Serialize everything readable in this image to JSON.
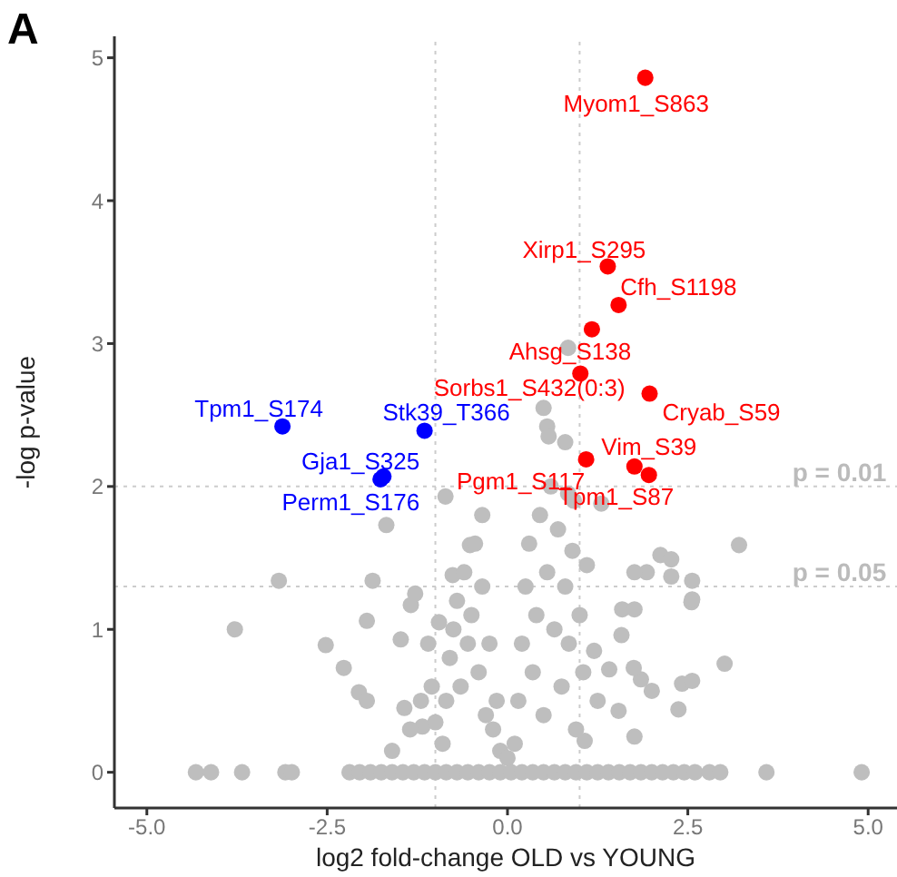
{
  "chart_data": {
    "type": "scatter",
    "title": "A",
    "xlabel": "log2 fold-change OLD vs YOUNG",
    "ylabel": "-log p-value",
    "xlim": [
      -5.45,
      5.4
    ],
    "ylim": [
      -0.25,
      5.15
    ],
    "xticks": [
      {
        "value": -5,
        "label": "-5.0"
      },
      {
        "value": -2.5,
        "label": "-2.5"
      },
      {
        "value": 0,
        "label": "0.0"
      },
      {
        "value": 2.5,
        "label": "2.5"
      },
      {
        "value": 5,
        "label": "5.0"
      }
    ],
    "yticks": [
      0,
      1,
      2,
      3,
      4,
      5
    ],
    "grid": false,
    "marker": "circle",
    "series": [
      {
        "color": "#bebebe",
        "x": [
          -4.32,
          -4.11,
          -3.68,
          -3.08,
          -2.99,
          -2.19,
          -2.05,
          -1.9,
          -1.75,
          -1.6,
          -1.45,
          -1.3,
          -1.15,
          -1.0,
          -0.85,
          -0.7,
          -0.55,
          -0.4,
          -0.25,
          -0.1,
          0.05,
          0.2,
          0.35,
          0.5,
          0.65,
          0.8,
          0.95,
          1.1,
          1.25,
          1.4,
          1.55,
          1.7,
          1.85,
          2.0,
          2.15,
          2.3,
          2.45,
          2.6,
          2.8,
          2.95,
          3.59,
          4.91,
          -3.78,
          -2.52,
          -2.27,
          -2.06,
          -1.95,
          -1.95,
          -1.43,
          -1.48,
          3.01,
          2.42,
          2.56,
          2.37,
          2.55,
          1.76,
          2.0,
          1.85,
          1.54,
          1.75,
          1.58,
          1.41,
          1.59,
          1.76,
          1.07,
          -1.18,
          -1.34,
          -1.68,
          -0.52,
          -0.35,
          -0.86,
          3.21,
          2.12,
          2.27,
          1.93,
          1.76,
          2.27,
          2.56,
          2.56,
          -3.17,
          -1.87,
          -1.28,
          -0.76,
          0.84,
          0.5,
          0.55,
          0.57,
          0.8,
          0.84,
          0.92,
          1.3,
          -0.9,
          -0.85,
          -0.8,
          -0.75,
          -0.7,
          -0.65,
          -0.6,
          -0.55,
          -0.5,
          -0.45,
          -0.4,
          -0.35,
          -0.3,
          -0.25,
          -0.2,
          -0.15,
          -0.1,
          0.0,
          0.1,
          0.15,
          0.2,
          0.25,
          0.3,
          0.35,
          0.4,
          0.45,
          0.5,
          0.55,
          0.6,
          0.65,
          0.7,
          0.75,
          0.8,
          0.85,
          0.9,
          0.95,
          1.0,
          1.05,
          1.1,
          1.2,
          1.25,
          -1.0,
          -1.05,
          -1.1,
          -0.95,
          -1.2,
          -1.35,
          -1.6
        ],
        "values": [
          0,
          0,
          0,
          0,
          0,
          0,
          0,
          0,
          0,
          0,
          0,
          0,
          0,
          0,
          0,
          0,
          0,
          0,
          0,
          0,
          0,
          0,
          0,
          0,
          0,
          0,
          0,
          0,
          0,
          0,
          0,
          0,
          0,
          0,
          0,
          0,
          0,
          0,
          0,
          0,
          0,
          0,
          1.0,
          0.89,
          0.73,
          0.56,
          0.5,
          1.06,
          0.45,
          0.93,
          0.76,
          0.62,
          0.64,
          0.44,
          1.19,
          0.25,
          0.57,
          0.65,
          0.43,
          0.73,
          0.96,
          0.72,
          1.14,
          1.14,
          0.22,
          0.32,
          1.17,
          1.73,
          1.59,
          1.8,
          1.93,
          1.59,
          1.52,
          1.49,
          1.4,
          1.4,
          1.37,
          1.34,
          1.21,
          1.34,
          1.34,
          1.25,
          1.38,
          2.97,
          2.55,
          2.42,
          2.35,
          2.31,
          1.95,
          1.9,
          1.88,
          0.2,
          0.5,
          0.8,
          1.0,
          1.2,
          0.6,
          1.4,
          0.9,
          1.1,
          1.6,
          0.7,
          1.3,
          0.4,
          0.9,
          0.3,
          0.5,
          0.15,
          0.1,
          0.2,
          0.5,
          0.9,
          1.3,
          1.6,
          0.7,
          1.1,
          1.8,
          0.4,
          1.4,
          2.0,
          1.0,
          1.7,
          0.6,
          1.3,
          0.9,
          1.55,
          0.3,
          1.1,
          0.7,
          1.45,
          0.85,
          0.5,
          0.35,
          0.6,
          0.9,
          1.05,
          0.5,
          0.3,
          0.15
        ]
      },
      {
        "color": "#ff0000",
        "x": [
          1.91,
          1.39,
          1.54,
          1.17,
          1.01,
          1.97,
          1.76,
          1.96,
          1.09
        ],
        "values": [
          4.86,
          3.54,
          3.27,
          3.1,
          2.79,
          2.65,
          2.14,
          2.08,
          2.19
        ]
      },
      {
        "color": "#0000ff",
        "x": [
          -3.12,
          -1.15,
          -1.76,
          -1.72
        ],
        "values": [
          2.42,
          2.39,
          2.05,
          2.07
        ]
      }
    ],
    "ref_lines": [
      {
        "axis": "x",
        "value": -1,
        "color": "#cccccc",
        "line_style": "dotted"
      },
      {
        "axis": "x",
        "value": 1,
        "color": "#cccccc",
        "line_style": "dotted"
      },
      {
        "axis": "y",
        "value": 2,
        "color": "#cccccc",
        "line_style": "dotted"
      },
      {
        "axis": "y",
        "value": 1.3,
        "color": "#cccccc",
        "line_style": "dotted"
      }
    ],
    "annotations": [
      {
        "text": "Myom1_S863",
        "x": 1.91,
        "y": 4.86
      },
      {
        "text": "Xirp1_S295",
        "x": 1.39,
        "y": 3.54
      },
      {
        "text": "Cfh_S1198",
        "x": 1.54,
        "y": 3.27
      },
      {
        "text": "Ahsg_S138",
        "x": 1.17,
        "y": 3.1
      },
      {
        "text": "Sorbs1_S432(0:3)",
        "x": 1.01,
        "y": 2.79
      },
      {
        "text": "Cryab_S59",
        "x": 1.97,
        "y": 2.65
      },
      {
        "text": "Vim_S39",
        "x": 1.76,
        "y": 2.14
      },
      {
        "text": "Tpm1_S87",
        "x": 1.96,
        "y": 2.08
      },
      {
        "text": "Pgm1_S117",
        "x": 1.09,
        "y": 2.19
      },
      {
        "text": "Tpm1_S174",
        "x": -3.12,
        "y": 2.42
      },
      {
        "text": "Stk39_T366",
        "x": -1.15,
        "y": 2.39
      },
      {
        "text": "Gja1_S325",
        "x": -1.76,
        "y": 2.05
      },
      {
        "text": "Perm1_S176",
        "x": -1.72,
        "y": 2.07
      },
      {
        "text": "p = 0.01",
        "x": 4.9,
        "y": 2
      },
      {
        "text": "p = 0.05",
        "x": 4.9,
        "y": 1.3
      }
    ]
  }
}
